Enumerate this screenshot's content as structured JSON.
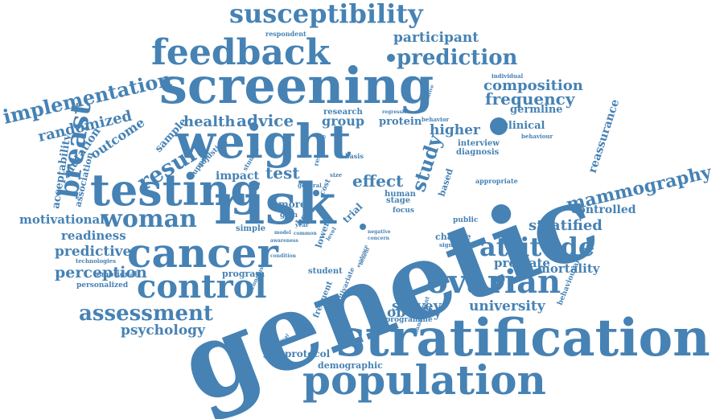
{
  "palette": {
    "word_color": "#4682b4",
    "background": "#ffffff"
  },
  "words": [
    "genetic",
    "stratification",
    "screening",
    "risk",
    "weight",
    "testing",
    "feedback",
    "cancer",
    "population",
    "control",
    "ovarian",
    "woman",
    "susceptibility",
    "attitude",
    "prediction",
    "breast",
    "assessment",
    "implementation",
    "result",
    "mammography",
    "study",
    "health",
    "advice",
    "frequency",
    "composition",
    "participant",
    "randomized",
    "test",
    "effect",
    "stratified",
    "motivational",
    "readiness",
    "predictive",
    "perception",
    "psychology",
    "university",
    "survey",
    "obesity",
    "mortality",
    "prostate",
    "reassurance",
    "outcome",
    "mutation",
    "acceptability",
    "group",
    "protein",
    "higher",
    "germline",
    "clinical",
    "controlled",
    "impact",
    "protocol",
    "demographic",
    "frequent",
    "human",
    "personalized",
    "emotional",
    "program",
    "student",
    "interview",
    "diagnosis",
    "sample",
    "association",
    "respondent",
    "individual",
    "behavioural",
    "behaviour",
    "change",
    "public",
    "appropriate",
    "technologies",
    "stage",
    "focus",
    "based",
    "more",
    "simple",
    "lower",
    "trial",
    "significant",
    "management",
    "hypothetical",
    "programme",
    "multivariate",
    "research",
    "regression",
    "qualitative",
    "behavior",
    "level",
    "support",
    "adjusting",
    "studies",
    "response",
    "size",
    "basis",
    "general",
    "gain",
    "model",
    "common",
    "year",
    "awareness",
    "condition",
    "body",
    "negative",
    "concern",
    "evidence",
    "benefit",
    "cost",
    "conclusion"
  ]
}
